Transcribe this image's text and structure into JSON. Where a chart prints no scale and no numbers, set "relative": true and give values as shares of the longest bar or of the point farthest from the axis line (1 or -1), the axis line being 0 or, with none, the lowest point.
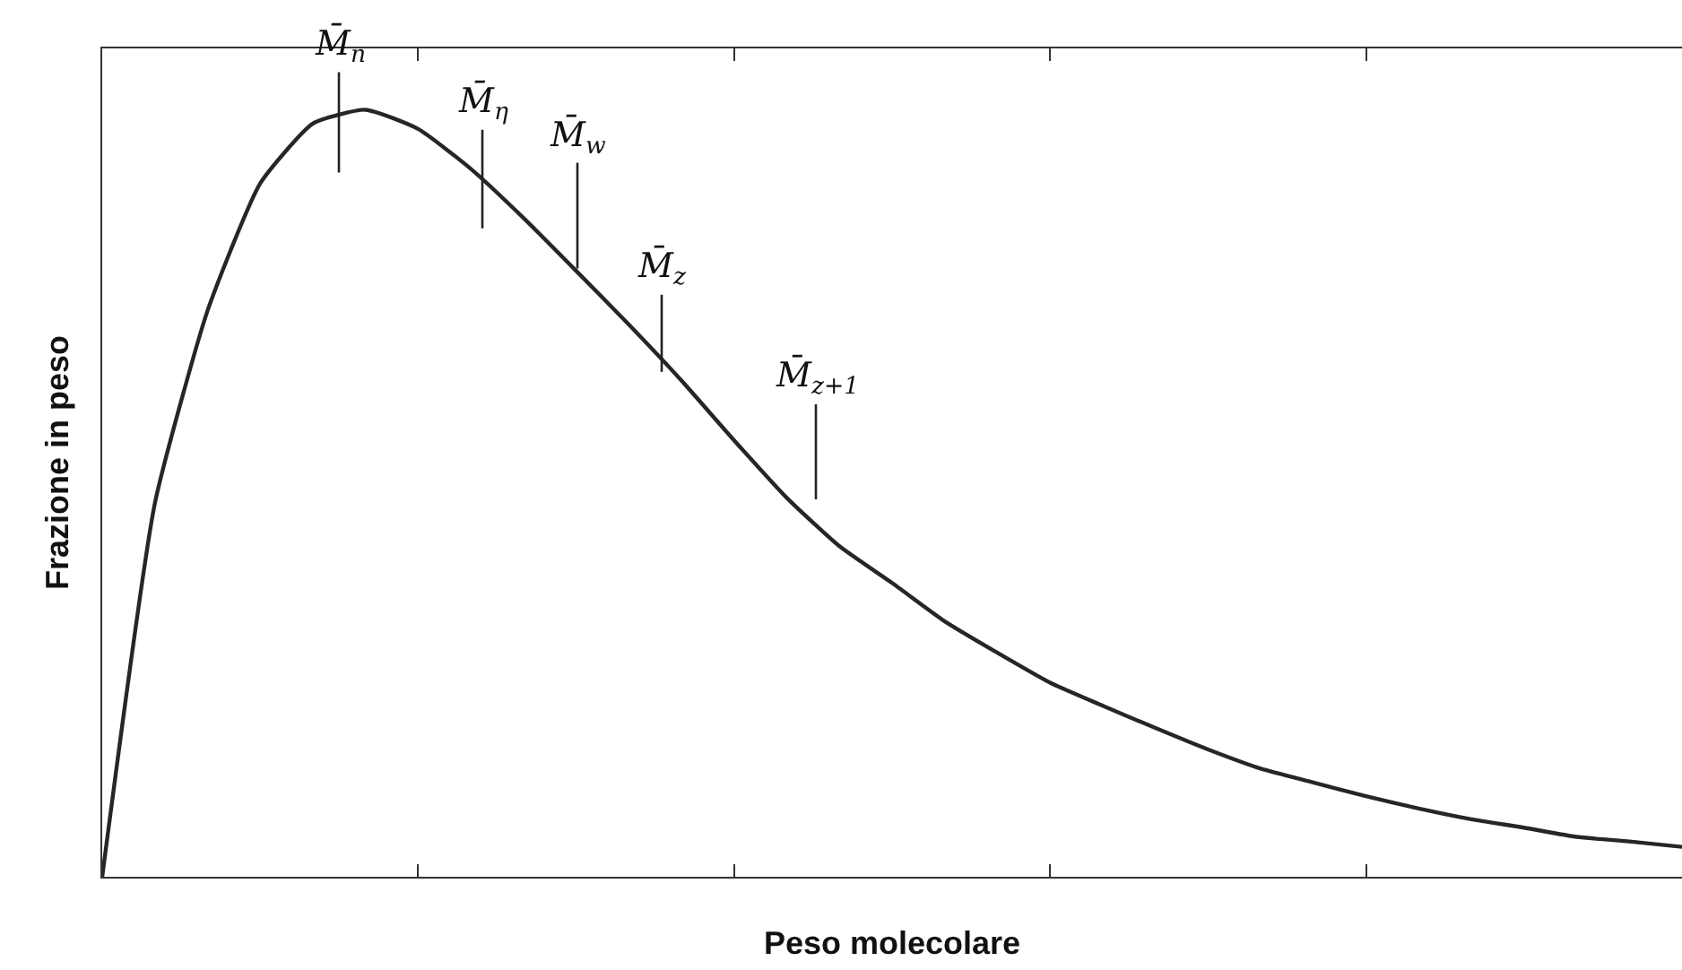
{
  "chart_data": {
    "type": "line",
    "relative": true,
    "xlabel": "Peso molecolare",
    "ylabel": "Frazione in peso",
    "tick_labels": false,
    "marker": "none",
    "line_style": "solid",
    "categories": [
      null,
      null,
      null,
      null,
      null,
      null,
      null,
      null,
      null,
      null,
      null,
      null,
      null,
      null,
      null,
      null,
      null,
      null,
      null,
      null,
      null,
      null,
      null,
      null,
      null,
      null,
      null,
      null,
      null,
      null,
      null
    ],
    "series": [
      {
        "color": "#262626",
        "values": [
          0,
          0.487,
          0.738,
          0.904,
          0.982,
          1.0,
          0.975,
          0.923,
          0.859,
          0.79,
          0.72,
          0.647,
          0.569,
          0.494,
          0.431,
          0.383,
          0.333,
          0.292,
          0.253,
          0.223,
          0.194,
          0.166,
          0.141,
          0.123,
          0.105,
          0.089,
          0.075,
          0.064,
          0.052,
          0.046,
          0.039
        ]
      }
    ],
    "annotations": [
      "M̄$_{n}$",
      "M̄$_{η}$",
      "M̄$_{w}$",
      "M̄$_{z}$",
      "M̄$_{z+1}$"
    ]
  }
}
